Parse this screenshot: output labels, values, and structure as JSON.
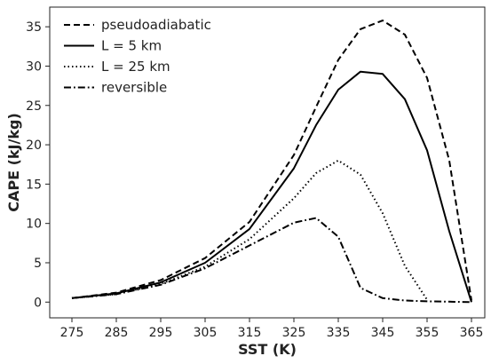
{
  "chart_data": {
    "type": "line",
    "title": "",
    "xlabel": "SST (K)",
    "ylabel": "CAPE (kJ/kg)",
    "xlim": [
      270,
      368
    ],
    "ylim": [
      -2,
      37.5
    ],
    "xticks": [
      275,
      285,
      295,
      305,
      315,
      325,
      335,
      345,
      355,
      365
    ],
    "yticks": [
      0,
      5,
      10,
      15,
      20,
      25,
      30,
      35
    ],
    "grid": false,
    "legend_position": "top-left",
    "series": [
      {
        "name": "pseudoadiabatic",
        "dash": "dashed",
        "x": [
          275,
          285,
          295,
          305,
          315,
          325,
          330,
          335,
          340,
          345,
          350,
          355,
          360,
          365
        ],
        "y": [
          0.5,
          1.2,
          2.8,
          5.6,
          10.2,
          18.7,
          24.8,
          30.8,
          34.7,
          35.8,
          34.0,
          28.5,
          18.0,
          0.2
        ]
      },
      {
        "name": "L = 5 km",
        "dash": "solid",
        "x": [
          275,
          285,
          295,
          305,
          315,
          325,
          330,
          335,
          340,
          345,
          350,
          355,
          360,
          365
        ],
        "y": [
          0.5,
          1.1,
          2.5,
          5.0,
          9.3,
          17.0,
          22.5,
          27.0,
          29.3,
          29.0,
          25.8,
          19.3,
          9.0,
          0.0
        ]
      },
      {
        "name": "L = 25 km",
        "dash": "dotted",
        "x": [
          275,
          285,
          295,
          305,
          315,
          325,
          330,
          335,
          340,
          345,
          350,
          355
        ],
        "y": [
          0.5,
          1.0,
          2.3,
          4.5,
          8.0,
          13.2,
          16.4,
          18.0,
          16.2,
          11.3,
          4.6,
          0.3
        ]
      },
      {
        "name": "reversible",
        "dash": "dashdot",
        "x": [
          275,
          285,
          295,
          305,
          315,
          325,
          330,
          335,
          340,
          345,
          350,
          355,
          360,
          365
        ],
        "y": [
          0.5,
          1.0,
          2.2,
          4.3,
          7.2,
          10.1,
          10.7,
          8.3,
          1.8,
          0.5,
          0.2,
          0.1,
          0.05,
          0.0
        ]
      }
    ]
  }
}
